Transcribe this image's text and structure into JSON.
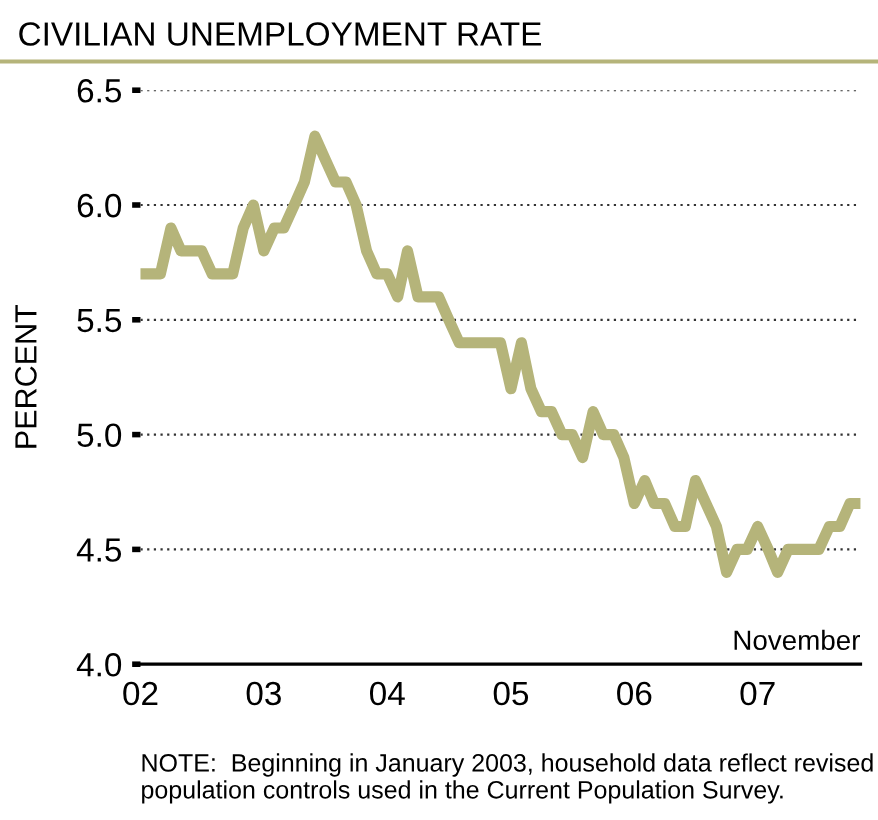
{
  "chart_data": {
    "type": "line",
    "title": "CIVILIAN UNEMPLOYMENT RATE",
    "ylabel": "PERCENT",
    "x": [
      "2002-01",
      "2002-02",
      "2002-03",
      "2002-04",
      "2002-05",
      "2002-06",
      "2002-07",
      "2002-08",
      "2002-09",
      "2002-10",
      "2002-11",
      "2002-12",
      "2003-01",
      "2003-02",
      "2003-03",
      "2003-04",
      "2003-05",
      "2003-06",
      "2003-07",
      "2003-08",
      "2003-09",
      "2003-10",
      "2003-11",
      "2003-12",
      "2004-01",
      "2004-02",
      "2004-03",
      "2004-04",
      "2004-05",
      "2004-06",
      "2004-07",
      "2004-08",
      "2004-09",
      "2004-10",
      "2004-11",
      "2004-12",
      "2005-01",
      "2005-02",
      "2005-03",
      "2005-04",
      "2005-05",
      "2005-06",
      "2005-07",
      "2005-08",
      "2005-09",
      "2005-10",
      "2005-11",
      "2005-12",
      "2006-01",
      "2006-02",
      "2006-03",
      "2006-04",
      "2006-05",
      "2006-06",
      "2006-07",
      "2006-08",
      "2006-09",
      "2006-10",
      "2006-11",
      "2006-12",
      "2007-01",
      "2007-02",
      "2007-03",
      "2007-04",
      "2007-05",
      "2007-06",
      "2007-07",
      "2007-08",
      "2007-09",
      "2007-10",
      "2007-11"
    ],
    "series": [
      {
        "color": "#b5b47a",
        "values": [
          5.7,
          5.7,
          5.7,
          5.9,
          5.8,
          5.8,
          5.8,
          5.7,
          5.7,
          5.7,
          5.9,
          6.0,
          5.8,
          5.9,
          5.9,
          6.0,
          6.1,
          6.3,
          6.2,
          6.1,
          6.1,
          6.0,
          5.8,
          5.7,
          5.7,
          5.6,
          5.8,
          5.6,
          5.6,
          5.6,
          5.5,
          5.4,
          5.4,
          5.4,
          5.4,
          5.4,
          5.2,
          5.4,
          5.2,
          5.1,
          5.1,
          5.0,
          5.0,
          4.9,
          5.1,
          5.0,
          5.0,
          4.9,
          4.7,
          4.8,
          4.7,
          4.7,
          4.6,
          4.6,
          4.8,
          4.7,
          4.6,
          4.4,
          4.5,
          4.5,
          4.6,
          4.5,
          4.4,
          4.5,
          4.5,
          4.5,
          4.5,
          4.6,
          4.6,
          4.7,
          4.7
        ]
      }
    ],
    "xlim": [
      "2002-01",
      "2007-11"
    ],
    "xticks": [
      {
        "value": "2002-01",
        "label": "02"
      },
      {
        "value": "2003-01",
        "label": "03"
      },
      {
        "value": "2004-01",
        "label": "04"
      },
      {
        "value": "2005-01",
        "label": "05"
      },
      {
        "value": "2006-01",
        "label": "06"
      },
      {
        "value": "2007-01",
        "label": "07"
      }
    ],
    "ylim": [
      4.0,
      6.5
    ],
    "yticks": [
      {
        "value": 4.0,
        "label": "4.0"
      },
      {
        "value": 4.5,
        "label": "4.5"
      },
      {
        "value": 5.0,
        "label": "5.0"
      },
      {
        "value": 5.5,
        "label": "5.5"
      },
      {
        "value": 6.0,
        "label": "6.0"
      },
      {
        "value": 6.5,
        "label": "6.5"
      }
    ],
    "grid": "y",
    "line_style": "solid",
    "marker": "none",
    "legend": false,
    "annotations": [
      "November",
      "NOTE:  Beginning in January 2003, household data reflect revised population controls used in the Current Population Survey."
    ]
  }
}
